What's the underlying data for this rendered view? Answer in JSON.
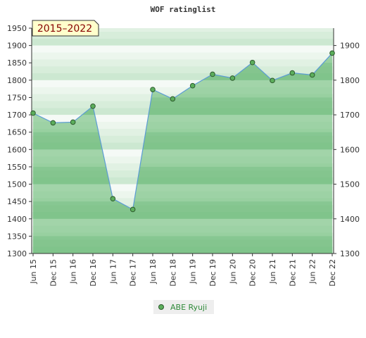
{
  "chart_data": {
    "type": "area",
    "title": "WOF ratinglist",
    "period_label": "2015–2022",
    "categories": [
      "Jun 15",
      "Dec 15",
      "Jun 16",
      "Dec 16",
      "Jun 17",
      "Dec 17",
      "Jun 18",
      "Dec 18",
      "Jun 19",
      "Dec 19",
      "Jun 20",
      "Dec 20",
      "Jun 21",
      "Dec 21",
      "Jun 22",
      "Dec 22"
    ],
    "series": [
      {
        "name": "ABE Ryuji",
        "values": [
          1705,
          1677,
          1679,
          1725,
          1458,
          1427,
          1773,
          1746,
          1784,
          1817,
          1806,
          1851,
          1799,
          1821,
          1815,
          1878
        ]
      }
    ],
    "ylim": [
      1300,
      1950
    ],
    "left_ticks": [
      1300,
      1350,
      1400,
      1450,
      1500,
      1550,
      1600,
      1650,
      1700,
      1750,
      1800,
      1850,
      1900,
      1950
    ],
    "right_ticks": [
      1300,
      1400,
      1500,
      1600,
      1700,
      1800,
      1900
    ],
    "legend_position": "bottom-center",
    "colors": {
      "line": "#5b9bd5",
      "marker": "#5cae5c",
      "band_dark": "#8fcc98",
      "band_light": "#f2f9f3"
    }
  }
}
